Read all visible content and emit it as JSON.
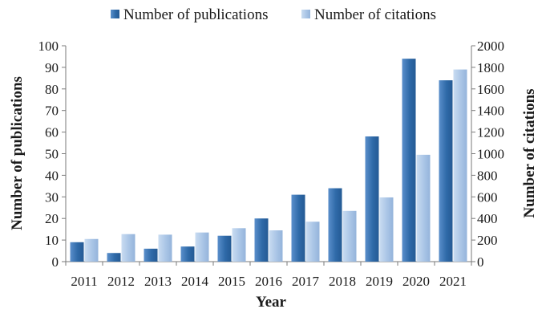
{
  "chart_data": {
    "type": "bar",
    "categories": [
      "2011",
      "2012",
      "2013",
      "2014",
      "2015",
      "2016",
      "2017",
      "2018",
      "2019",
      "2020",
      "2021"
    ],
    "series": [
      {
        "name": "Number of publications",
        "axis": "left",
        "color": "#2f6aa8",
        "values": [
          9,
          4,
          6,
          7,
          12,
          20,
          31,
          34,
          58,
          94,
          84
        ]
      },
      {
        "name": "Number of citations",
        "axis": "right",
        "color": "#aac5e6",
        "values": [
          210,
          255,
          250,
          270,
          310,
          290,
          370,
          470,
          595,
          990,
          1780
        ]
      }
    ],
    "xlabel": "Year",
    "ylabel_left": "Number of publications",
    "ylabel_right": "Number of citations",
    "ylim_left": [
      0,
      100
    ],
    "ylim_right": [
      0,
      2000
    ],
    "yticks_left": [
      "0",
      "10",
      "20",
      "30",
      "40",
      "50",
      "60",
      "70",
      "80",
      "90",
      "100"
    ],
    "yticks_right": [
      "0",
      "200",
      "400",
      "600",
      "800",
      "1000",
      "1200",
      "1400",
      "1600",
      "1800",
      "2000"
    ],
    "legend_position": "top",
    "grid": false
  }
}
